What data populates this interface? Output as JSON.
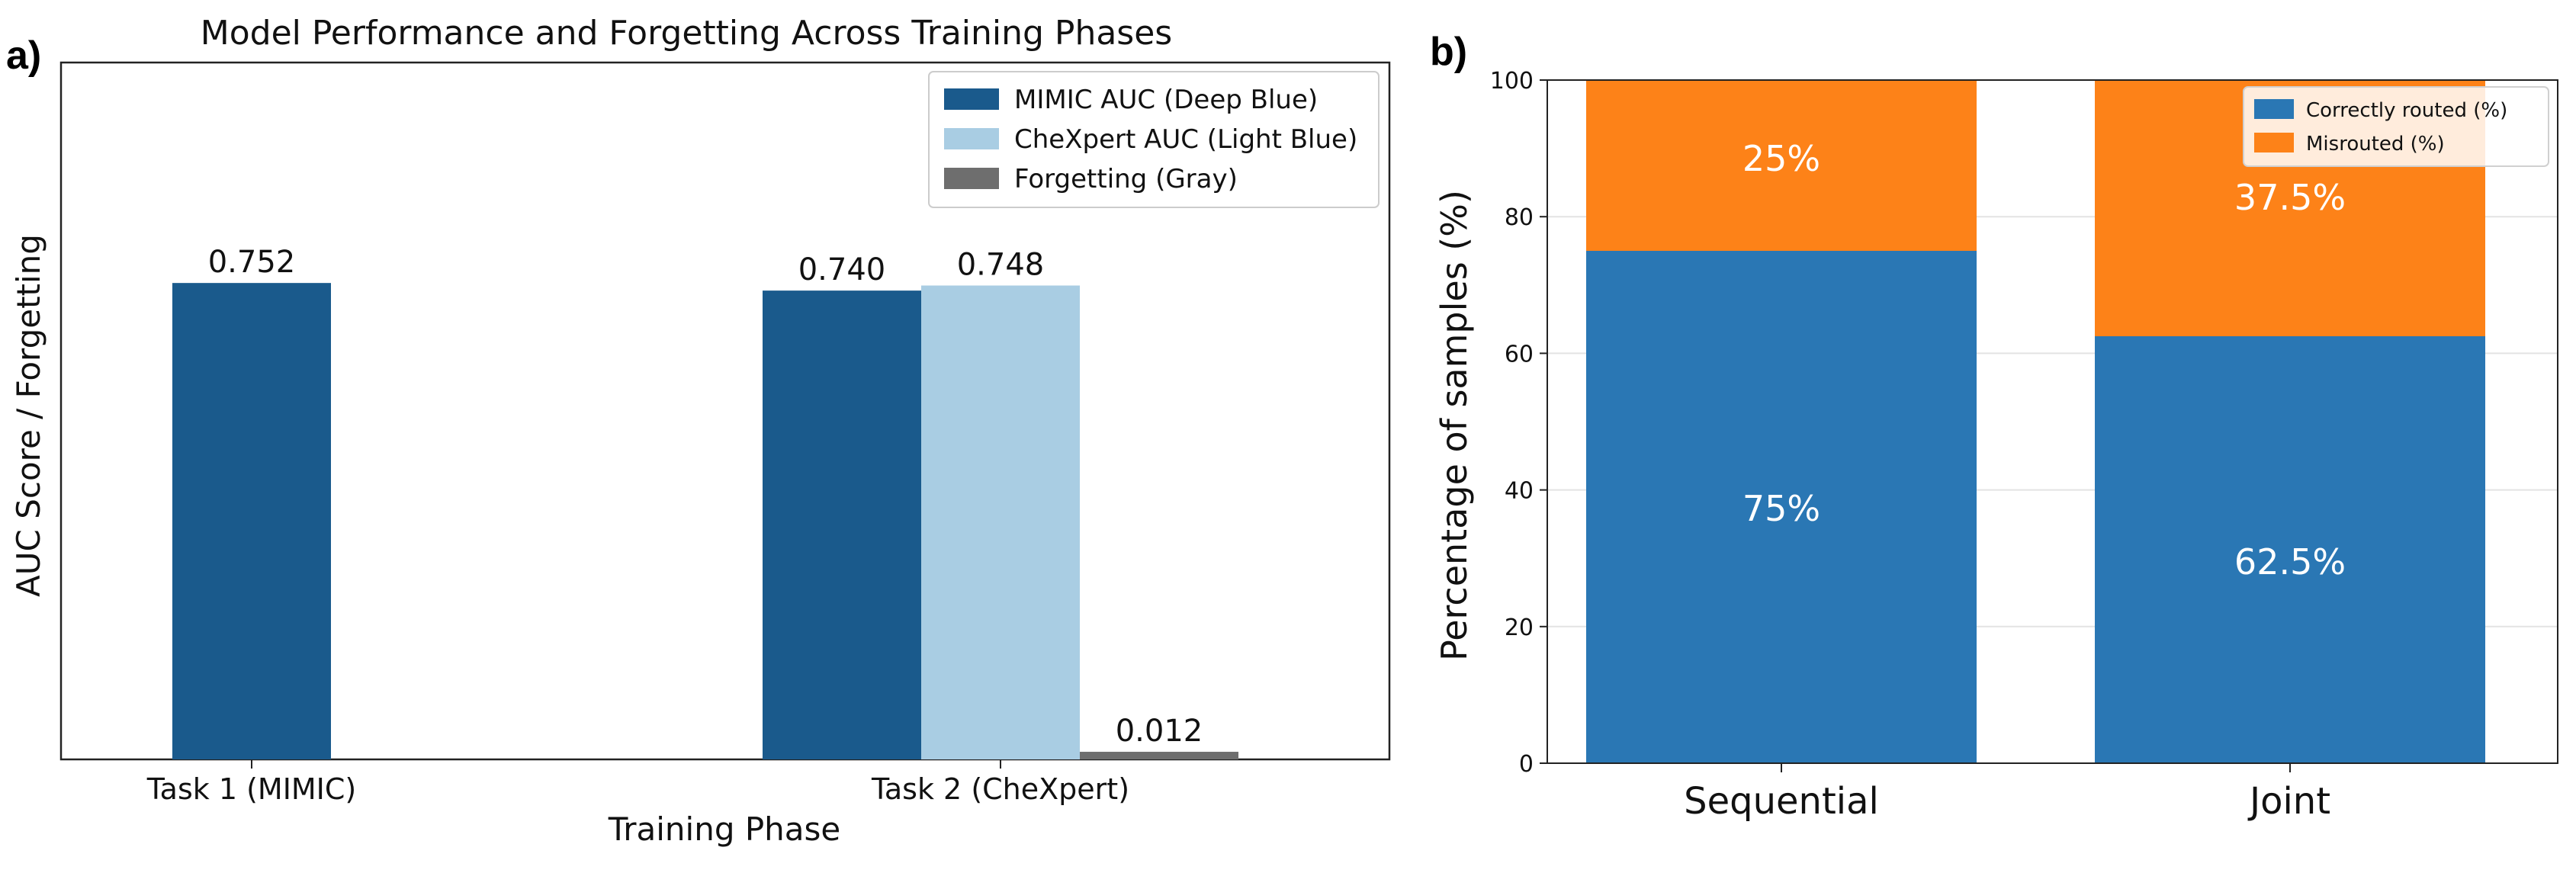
{
  "panels": {
    "a": {
      "letter": "a)"
    },
    "b": {
      "letter": "b)"
    }
  },
  "chart_data": [
    {
      "type": "bar",
      "title": "Model Performance and Forgetting Across Training Phases",
      "xlabel": "Training Phase",
      "ylabel": "AUC Score / Forgetting",
      "categories": [
        "Task 1 (MIMIC)",
        "Task 2 (CheXpert)"
      ],
      "ylim": [
        0,
        1.1
      ],
      "grid": false,
      "legend_position": "top-right",
      "series": [
        {
          "name": "MIMIC AUC (Deep Blue)",
          "color": "#1a5a8c",
          "values": [
            0.752,
            0.74
          ],
          "labels": [
            "0.752",
            "0.740"
          ]
        },
        {
          "name": "CheXpert AUC (Light Blue)",
          "color": "#a9cde3",
          "values": [
            null,
            0.748
          ],
          "labels": [
            "",
            "0.748"
          ]
        },
        {
          "name": "Forgetting (Gray)",
          "color": "#6e6e6e",
          "values": [
            null,
            0.012
          ],
          "labels": [
            "",
            "0.012"
          ]
        }
      ]
    },
    {
      "type": "bar",
      "stacked": true,
      "title": "",
      "xlabel": "",
      "ylabel": "Percentage of samples (%)",
      "categories": [
        "Sequential",
        "Joint"
      ],
      "ylim": [
        0,
        100
      ],
      "yticks": [
        "0",
        "20",
        "40",
        "60",
        "80",
        "100"
      ],
      "grid": true,
      "legend_position": "top-right",
      "series": [
        {
          "name": "Correctly routed (%)",
          "color": "#2a77b4",
          "values": [
            75,
            62.5
          ],
          "labels": [
            "75%",
            "62.5%"
          ]
        },
        {
          "name": "Misrouted (%)",
          "color": "#fd8218",
          "values": [
            25,
            37.5
          ],
          "labels": [
            "25%",
            "37.5%"
          ]
        }
      ]
    }
  ]
}
